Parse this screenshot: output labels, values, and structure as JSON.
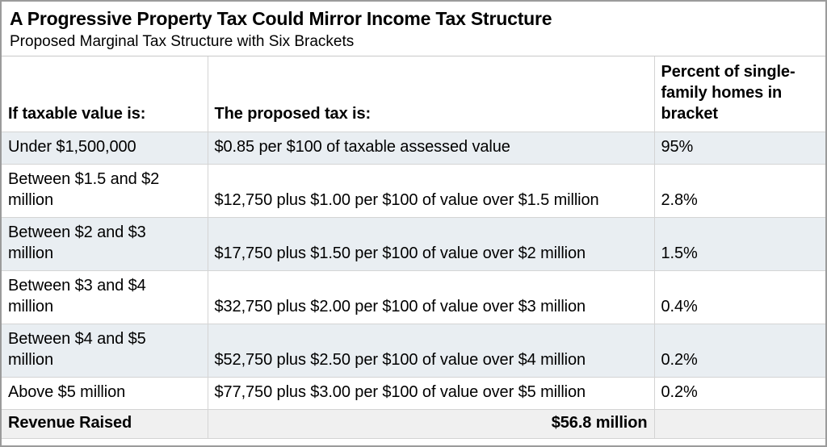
{
  "chart_data": {
    "type": "table",
    "title": "A Progressive Property Tax Could Mirror Income Tax Structure",
    "subtitle": "Proposed Marginal Tax Structure with Six Brackets",
    "columns": [
      "If taxable value is:",
      "The proposed tax is:",
      "Percent of single-family homes in bracket"
    ],
    "rows": [
      [
        "Under $1,500,000",
        "$0.85 per $100 of taxable assessed value",
        "95%"
      ],
      [
        "Between $1.5 and $2 million",
        "$12,750 plus $1.00 per $100 of value over $1.5 million",
        "2.8%"
      ],
      [
        "Between $2 and $3 million",
        "$17,750 plus $1.50 per $100 of value over $2 million",
        "1.5%"
      ],
      [
        "Between $3 and $4 million",
        "$32,750 plus $2.00 per $100 of value over $3 million",
        "0.4%"
      ],
      [
        "Between $4 and $5 million",
        "$52,750 plus $2.50 per $100 of value over $4 million",
        "0.2%"
      ],
      [
        "Above $5 million",
        "$77,750 plus $3.00 per $100 of value over $5 million",
        "0.2%"
      ]
    ],
    "footer_row": {
      "label": "Revenue Raised",
      "value": "$56.8 million"
    },
    "bracket_percent_values": [
      95,
      2.8,
      1.5,
      0.4,
      0.2,
      0.2
    ],
    "revenue_raised_millions": 56.8,
    "layout_hints": {
      "shaded_row_indices": [
        0,
        2,
        4
      ],
      "grid": true
    }
  },
  "colors": {
    "row_shade": "#e9eef2",
    "footer_shade": "#f0f0f0",
    "inner_border": "#d4d4d4",
    "outer_border": "#9b9b9b",
    "title_rule": "#c9c9c9",
    "text": "#000000"
  }
}
